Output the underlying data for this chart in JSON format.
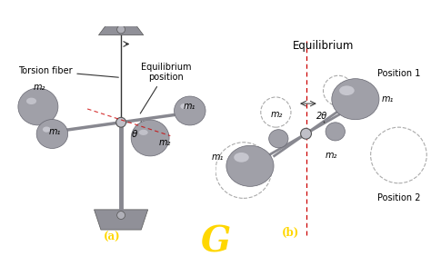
{
  "bg_color": "#ffffff",
  "title": "",
  "label_a": "(a)",
  "label_b": "(b)",
  "label_G": "G",
  "label_G_color": "#FFD700",
  "label_ab_color": "#FFD700",
  "torsion_fiber": "Torsion fiber",
  "equilibrium_position": "Equilibrium\nposition",
  "equilibrium_top": "Equilibrium",
  "position1": "Position 1",
  "position2": "Position 2",
  "theta_label": "θ",
  "twotheta_label": "2θ",
  "m1_label": "m₁",
  "m2_label": "m₂",
  "dashed_line_color": "#cc0000",
  "dashed_vert_color": "#cc0000",
  "sphere_color": "#a0a0a8",
  "sphere_color_dark": "#808088",
  "fixture_color": "#909098",
  "arrow_color": "#333333",
  "font_size": 7.5,
  "fig_width": 4.74,
  "fig_height": 3.04
}
